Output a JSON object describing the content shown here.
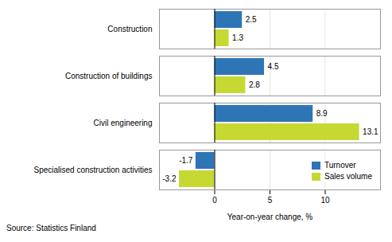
{
  "chart_data": {
    "type": "bar",
    "orientation": "horizontal",
    "categories": [
      "Construction",
      "Construction of buildings",
      "Civil engineering",
      "Specialised construction activities"
    ],
    "series": [
      {
        "name": "Turnover",
        "color": "#2e75b6",
        "values": [
          2.5,
          4.5,
          8.9,
          -1.7
        ]
      },
      {
        "name": "Sales volume",
        "color": "#c5d932",
        "values": [
          1.3,
          2.8,
          13.1,
          -3.2
        ]
      }
    ],
    "xlabel": "Year-on-year change, %",
    "xlim": [
      -5,
      15
    ],
    "xticks": [
      0,
      5,
      10
    ],
    "grid": true,
    "legend": "lower right",
    "data_labels": true,
    "annotations": [
      "Source: Statistics Finland"
    ]
  }
}
